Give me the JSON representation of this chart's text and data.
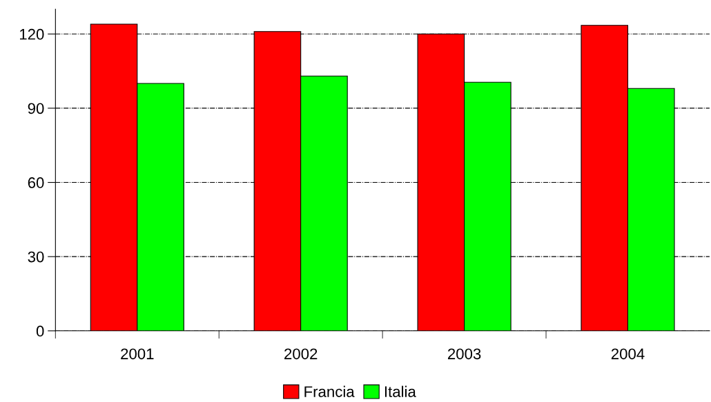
{
  "chart_data": {
    "type": "bar",
    "categories": [
      "2001",
      "2002",
      "2003",
      "2004"
    ],
    "series": [
      {
        "name": "Francia",
        "color": "#ff0000",
        "values": [
          124,
          121,
          120,
          123.5
        ]
      },
      {
        "name": "Italia",
        "color": "#00ff00",
        "values": [
          100,
          103,
          100.5,
          98
        ]
      }
    ],
    "ylim": [
      0,
      130
    ],
    "yticks": [
      0,
      30,
      60,
      90,
      120
    ],
    "grid": "y",
    "legend": "bottom"
  }
}
